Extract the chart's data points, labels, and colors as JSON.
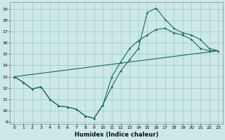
{
  "xlabel": "Humidex (Indice chaleur)",
  "background_color": "#cce8e8",
  "grid_color": "#aacccc",
  "line_color": "#1a6b5a",
  "xlim": [
    -0.5,
    23.5
  ],
  "ylim": [
    8.8,
    19.6
  ],
  "xticks": [
    0,
    1,
    2,
    3,
    4,
    5,
    6,
    7,
    8,
    9,
    10,
    11,
    12,
    13,
    14,
    15,
    16,
    17,
    18,
    19,
    20,
    21,
    22,
    23
  ],
  "yticks": [
    9,
    10,
    11,
    12,
    13,
    14,
    15,
    16,
    17,
    18,
    19
  ],
  "line1_x": [
    0,
    1,
    2,
    3,
    4,
    5,
    6,
    7,
    8,
    9,
    10,
    11,
    12,
    13,
    14,
    15,
    16,
    17,
    18,
    19,
    20,
    21,
    22,
    23
  ],
  "line1_y": [
    13,
    12.5,
    11.9,
    12.1,
    11.0,
    10.4,
    10.3,
    10.1,
    9.5,
    9.3,
    10.5,
    12.1,
    13.5,
    14.5,
    15.5,
    18.7,
    19.1,
    18.1,
    17.3,
    16.9,
    16.7,
    16.3,
    15.5,
    15.3
  ],
  "line2_x": [
    0,
    1,
    2,
    3,
    4,
    5,
    6,
    7,
    8,
    9,
    10,
    11,
    12,
    13,
    14,
    15,
    16,
    17,
    18,
    19,
    20,
    21,
    22,
    23
  ],
  "line2_y": [
    13,
    12.5,
    11.9,
    12.1,
    11.0,
    10.4,
    10.3,
    10.1,
    9.5,
    9.3,
    10.5,
    13.0,
    14.3,
    15.5,
    16.2,
    16.7,
    17.2,
    17.3,
    16.9,
    16.7,
    16.3,
    15.5,
    15.3,
    15.3
  ],
  "line3_x": [
    0,
    23
  ],
  "line3_y": [
    13,
    15.3
  ]
}
